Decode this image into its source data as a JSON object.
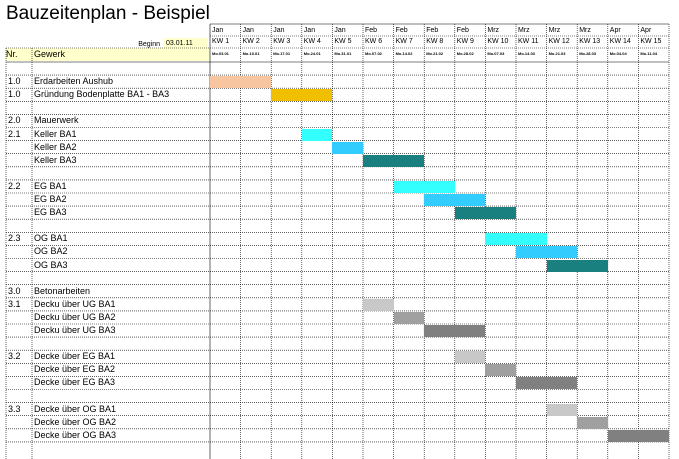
{
  "title": "Bauzeitenplan - Beispiel",
  "beginn": {
    "label": "Beginn",
    "value": "03.01.11"
  },
  "columns_header": {
    "nr": "Nr.",
    "gewerk": "Gewerk"
  },
  "weeks": [
    {
      "month": "Jan",
      "kw": "KW 1",
      "date": "Mo.03.01"
    },
    {
      "month": "Jan",
      "kw": "KW 2",
      "date": "Mo.10.01"
    },
    {
      "month": "Jan",
      "kw": "KW 3",
      "date": "Mo.17.01"
    },
    {
      "month": "Jan",
      "kw": "KW 4",
      "date": "Mo.24.01"
    },
    {
      "month": "Jan",
      "kw": "KW 5",
      "date": "Mo.31.01"
    },
    {
      "month": "Feb",
      "kw": "KW 6",
      "date": "Mo.07.02"
    },
    {
      "month": "Feb",
      "kw": "KW 7",
      "date": "Mo.14.02"
    },
    {
      "month": "Feb",
      "kw": "KW 8",
      "date": "Mo.21.02"
    },
    {
      "month": "Feb",
      "kw": "KW 9",
      "date": "Mo.28.02"
    },
    {
      "month": "Mrz",
      "kw": "KW 10",
      "date": "Mo.07.03"
    },
    {
      "month": "Mrz",
      "kw": "KW 11",
      "date": "Mo.14.03"
    },
    {
      "month": "Mrz",
      "kw": "KW 12",
      "date": "Mo.21.03"
    },
    {
      "month": "Mrz",
      "kw": "KW 13",
      "date": "Mo.28.03"
    },
    {
      "month": "Apr",
      "kw": "KW 14",
      "date": "Mo.04.04"
    },
    {
      "month": "Apr",
      "kw": "KW 15",
      "date": "Mo.11.04"
    }
  ],
  "rows": [
    {
      "nr": "",
      "task": ""
    },
    {
      "nr": "1.0",
      "task": "Erdarbeiten Aushub",
      "bar": {
        "start": 0,
        "len": 2,
        "color": "#f7c59f"
      }
    },
    {
      "nr": "1.0",
      "task": "Gründung Bodenplatte BA1 - BA3",
      "bar": {
        "start": 2,
        "len": 2,
        "color": "#f0c000"
      }
    },
    {
      "nr": "",
      "task": ""
    },
    {
      "nr": "2.0",
      "task": "Mauerwerk"
    },
    {
      "nr": "2.1",
      "task": "Keller BA1",
      "bar": {
        "start": 3,
        "len": 1,
        "color": "#33ffff"
      }
    },
    {
      "nr": "",
      "task": "Keller BA2",
      "bar": {
        "start": 4,
        "len": 1,
        "color": "#33ccff"
      }
    },
    {
      "nr": "",
      "task": "Keller BA3",
      "bar": {
        "start": 5,
        "len": 2,
        "color": "#1a7f7f"
      }
    },
    {
      "nr": "",
      "task": ""
    },
    {
      "nr": "2.2",
      "task": "EG BA1",
      "bar": {
        "start": 6,
        "len": 2,
        "color": "#33ffff"
      }
    },
    {
      "nr": "",
      "task": "EG BA2",
      "bar": {
        "start": 7,
        "len": 2,
        "color": "#33ccff"
      }
    },
    {
      "nr": "",
      "task": "EG BA3",
      "bar": {
        "start": 8,
        "len": 2,
        "color": "#1a7f7f"
      }
    },
    {
      "nr": "",
      "task": ""
    },
    {
      "nr": "2.3",
      "task": "OG BA1",
      "bar": {
        "start": 9,
        "len": 2,
        "color": "#33ffff"
      }
    },
    {
      "nr": "",
      "task": "OG BA2",
      "bar": {
        "start": 10,
        "len": 2,
        "color": "#33ccff"
      }
    },
    {
      "nr": "",
      "task": "OG BA3",
      "bar": {
        "start": 11,
        "len": 2,
        "color": "#1a7f7f"
      }
    },
    {
      "nr": "",
      "task": ""
    },
    {
      "nr": "3.0",
      "task": "Betonarbeiten"
    },
    {
      "nr": "3.1",
      "task": "Decku über UG BA1",
      "bar": {
        "start": 5,
        "len": 1,
        "color": "#c8c8c8"
      }
    },
    {
      "nr": "",
      "task": "Decku über UG BA2",
      "bar": {
        "start": 6,
        "len": 1,
        "color": "#a0a0a0"
      }
    },
    {
      "nr": "",
      "task": "Decku über UG BA3",
      "bar": {
        "start": 7,
        "len": 2,
        "color": "#808080"
      }
    },
    {
      "nr": "",
      "task": ""
    },
    {
      "nr": "3.2",
      "task": "Decke über EG BA1",
      "bar": {
        "start": 8,
        "len": 1,
        "color": "#c8c8c8"
      }
    },
    {
      "nr": "",
      "task": "Decke über EG BA2",
      "bar": {
        "start": 9,
        "len": 1,
        "color": "#a0a0a0"
      }
    },
    {
      "nr": "",
      "task": "Decke über EG BA3",
      "bar": {
        "start": 10,
        "len": 2,
        "color": "#808080"
      }
    },
    {
      "nr": "",
      "task": ""
    },
    {
      "nr": "3.3",
      "task": "Decke über OG BA1",
      "bar": {
        "start": 11,
        "len": 1,
        "color": "#c8c8c8"
      }
    },
    {
      "nr": "",
      "task": "Decke über OG BA2",
      "bar": {
        "start": 12,
        "len": 1,
        "color": "#a0a0a0"
      }
    },
    {
      "nr": "",
      "task": "Decke über OG BA3",
      "bar": {
        "start": 13,
        "len": 2,
        "color": "#808080"
      }
    }
  ]
}
